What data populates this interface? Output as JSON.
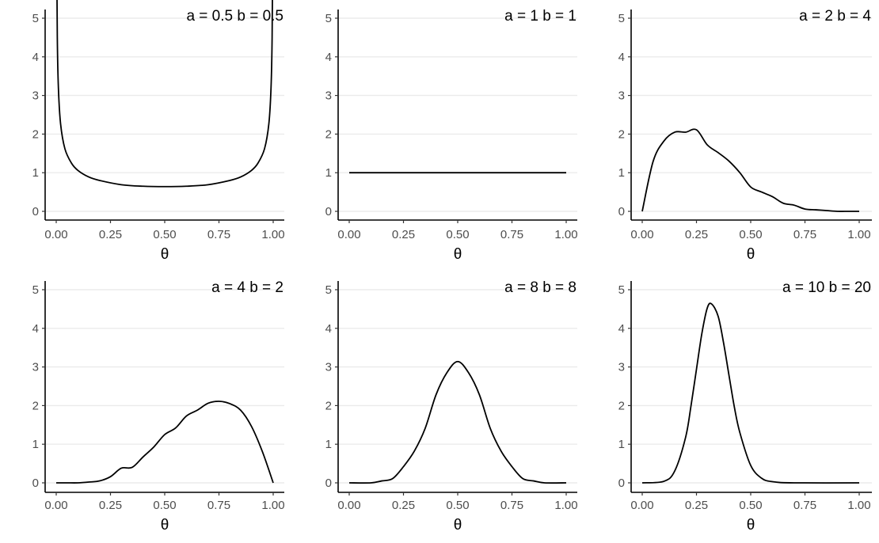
{
  "chart_data": [
    {
      "type": "line",
      "title": "a = 0.5 b = 0.5",
      "xlabel": "θ",
      "ylabel": "",
      "params": {
        "a": 0.5,
        "b": 0.5
      },
      "xlim": [
        0,
        1
      ],
      "ylim": [
        0,
        5
      ],
      "xticks": [
        0,
        0.25,
        0.5,
        0.75,
        1
      ],
      "xtick_labels": [
        "0.00",
        "0.25",
        "0.50",
        "0.75",
        "1.00"
      ],
      "yticks": [
        0,
        1,
        2,
        3,
        4,
        5
      ],
      "ytick_labels": [
        "0",
        "1",
        "2",
        "3",
        "4",
        "5"
      ],
      "grid": "horizontal-major",
      "series": [
        {
          "x": [
            0.002,
            0.005,
            0.01,
            0.02,
            0.04,
            0.07,
            0.1,
            0.15,
            0.2,
            0.3,
            0.4,
            0.5,
            0.6,
            0.7,
            0.8,
            0.85,
            0.9,
            0.93,
            0.96,
            0.98,
            0.99,
            0.995,
            0.998
          ],
          "y": [
            7.13,
            4.51,
            3.2,
            2.27,
            1.62,
            1.25,
            1.06,
            0.89,
            0.8,
            0.69,
            0.65,
            0.64,
            0.65,
            0.69,
            0.8,
            0.89,
            1.06,
            1.25,
            1.62,
            2.27,
            3.2,
            4.51,
            7.13
          ]
        }
      ]
    },
    {
      "type": "line",
      "title": "a = 1 b = 1",
      "xlabel": "θ",
      "ylabel": "",
      "params": {
        "a": 1,
        "b": 1
      },
      "xlim": [
        0,
        1
      ],
      "ylim": [
        0,
        5
      ],
      "xticks": [
        0,
        0.25,
        0.5,
        0.75,
        1
      ],
      "xtick_labels": [
        "0.00",
        "0.25",
        "0.50",
        "0.75",
        "1.00"
      ],
      "yticks": [
        0,
        1,
        2,
        3,
        4,
        5
      ],
      "ytick_labels": [
        "0",
        "1",
        "2",
        "3",
        "4",
        "5"
      ],
      "grid": "horizontal-major",
      "series": [
        {
          "x": [
            0,
            1
          ],
          "y": [
            1,
            1
          ]
        }
      ]
    },
    {
      "type": "line",
      "title": "a = 2 b = 4",
      "xlabel": "θ",
      "ylabel": "",
      "params": {
        "a": 2,
        "b": 4
      },
      "xlim": [
        0,
        1
      ],
      "ylim": [
        0,
        5
      ],
      "xticks": [
        0,
        0.25,
        0.5,
        0.75,
        1
      ],
      "xtick_labels": [
        "0.00",
        "0.25",
        "0.50",
        "0.75",
        "1.00"
      ],
      "yticks": [
        0,
        1,
        2,
        3,
        4,
        5
      ],
      "ytick_labels": [
        "0",
        "1",
        "2",
        "3",
        "4",
        "5"
      ],
      "grid": "horizontal-major",
      "series": [
        {
          "x": [
            0,
            0.05,
            0.1,
            0.15,
            0.2,
            0.25,
            0.3,
            0.35,
            0.4,
            0.45,
            0.5,
            0.55,
            0.6,
            0.65,
            0.7,
            0.75,
            0.8,
            0.85,
            0.9,
            0.95,
            1
          ],
          "y": [
            0,
            1.29,
            1.82,
            2.05,
            2.05,
            2.11,
            1.72,
            1.52,
            1.3,
            1.0,
            0.63,
            0.5,
            0.38,
            0.21,
            0.16,
            0.06,
            0.04,
            0.02,
            0.0,
            0.0,
            0
          ]
        }
      ]
    },
    {
      "type": "line",
      "title": "a = 4 b = 2",
      "xlabel": "θ",
      "ylabel": "",
      "params": {
        "a": 4,
        "b": 2
      },
      "xlim": [
        0,
        1
      ],
      "ylim": [
        0,
        5
      ],
      "xticks": [
        0,
        0.25,
        0.5,
        0.75,
        1
      ],
      "xtick_labels": [
        "0.00",
        "0.25",
        "0.50",
        "0.75",
        "1.00"
      ],
      "yticks": [
        0,
        1,
        2,
        3,
        4,
        5
      ],
      "ytick_labels": [
        "0",
        "1",
        "2",
        "3",
        "4",
        "5"
      ],
      "grid": "horizontal-major",
      "series": [
        {
          "x": [
            0,
            0.05,
            0.1,
            0.15,
            0.2,
            0.25,
            0.3,
            0.35,
            0.4,
            0.45,
            0.5,
            0.55,
            0.6,
            0.65,
            0.7,
            0.75,
            0.8,
            0.85,
            0.9,
            0.95,
            1
          ],
          "y": [
            0,
            0.0,
            0.0,
            0.02,
            0.05,
            0.16,
            0.38,
            0.4,
            0.67,
            0.93,
            1.25,
            1.42,
            1.73,
            1.88,
            2.06,
            2.11,
            2.05,
            1.88,
            1.46,
            0.81,
            0
          ]
        }
      ]
    },
    {
      "type": "line",
      "title": "a = 8 b = 8",
      "xlabel": "θ",
      "ylabel": "",
      "params": {
        "a": 8,
        "b": 8
      },
      "xlim": [
        0,
        1
      ],
      "ylim": [
        0,
        5
      ],
      "xticks": [
        0,
        0.25,
        0.5,
        0.75,
        1
      ],
      "xtick_labels": [
        "0.00",
        "0.25",
        "0.50",
        "0.75",
        "1.00"
      ],
      "yticks": [
        0,
        1,
        2,
        3,
        4,
        5
      ],
      "ytick_labels": [
        "0",
        "1",
        "2",
        "3",
        "4",
        "5"
      ],
      "grid": "horizontal-major",
      "series": [
        {
          "x": [
            0,
            0.1,
            0.15,
            0.2,
            0.25,
            0.3,
            0.35,
            0.4,
            0.45,
            0.5,
            0.55,
            0.6,
            0.65,
            0.7,
            0.75,
            0.8,
            0.85,
            0.9,
            1
          ],
          "y": [
            0,
            0.0,
            0.05,
            0.11,
            0.42,
            0.82,
            1.41,
            2.28,
            2.85,
            3.14,
            2.85,
            2.28,
            1.41,
            0.82,
            0.42,
            0.11,
            0.05,
            0.0,
            0
          ]
        }
      ]
    },
    {
      "type": "line",
      "title": "a = 10 b = 20",
      "xlabel": "θ",
      "ylabel": "",
      "params": {
        "a": 10,
        "b": 20
      },
      "xlim": [
        0,
        1
      ],
      "ylim": [
        0,
        5
      ],
      "xticks": [
        0,
        0.25,
        0.5,
        0.75,
        1
      ],
      "xtick_labels": [
        "0.00",
        "0.25",
        "0.50",
        "0.75",
        "1.00"
      ],
      "yticks": [
        0,
        1,
        2,
        3,
        4,
        5
      ],
      "ytick_labels": [
        "0",
        "1",
        "2",
        "3",
        "4",
        "5"
      ],
      "grid": "horizontal-major",
      "series": [
        {
          "x": [
            0,
            0.1,
            0.15,
            0.2,
            0.225,
            0.25,
            0.275,
            0.3,
            0.32,
            0.35,
            0.375,
            0.4,
            0.425,
            0.45,
            0.5,
            0.55,
            0.6,
            0.7,
            1
          ],
          "y": [
            0,
            0.04,
            0.31,
            1.18,
            2.0,
            2.94,
            3.87,
            4.53,
            4.63,
            4.31,
            3.62,
            2.78,
            1.95,
            1.3,
            0.45,
            0.12,
            0.03,
            0.0,
            0
          ]
        }
      ]
    }
  ]
}
